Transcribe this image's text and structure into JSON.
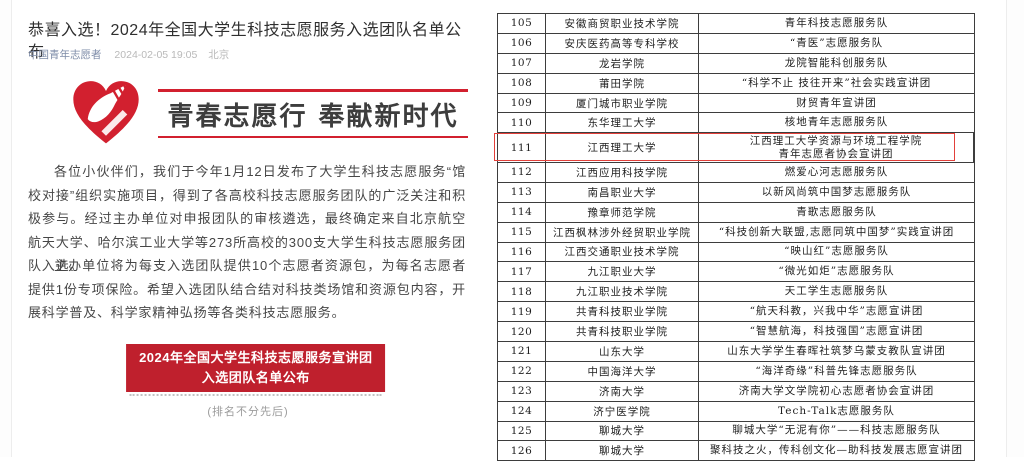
{
  "article": {
    "title": "恭喜入选！2024年全国大学生科技志愿服务入选团队名单公布",
    "account": "中国青年志愿者",
    "date": "2024-02-05 19:05",
    "location": "北京",
    "slogan": "青春志愿行 奉献新时代",
    "paragraphs": {
      "p1": "各位小伙伴们，我们于今年1月12日发布了大学生科技志愿服务“馆校对接”组织实施项目，得到了各高校科技志愿服务团队的广泛关注和积极参与。经过主办单位对申报团队的审核遴选，最终确定来自北京航空航天大学、哈尔滨工业大学等273所高校的300支大学生科技志愿服务团队入选。",
      "p2": "主办单位将为每支入选团队提供10个志愿者资源包，为每名志愿者提供1份专项保险。希望入选团队结合结对科技类场馆和资源包内容，开展科学普及、科学家精神弘扬等各类科技志愿服务。"
    },
    "button_line1": "2024年全国大学生科技志愿服务宣讲团",
    "button_line2": "入选团队名单公布",
    "rank_note": "(排名不分先后)"
  },
  "colors": {
    "brand_red": "#bf202d",
    "logo_red": "#d2202f",
    "highlight_red": "#e2403a",
    "account_blue": "#7e8ca8",
    "table_border": "#3d3d3d"
  },
  "table": {
    "highlighted_no": "111",
    "rows": [
      {
        "no": "105",
        "school": "安徽商贸职业技术学院",
        "team": "青年科技志愿服务队"
      },
      {
        "no": "106",
        "school": "安庆医药高等专科学校",
        "team": "“青医”志愿服务队"
      },
      {
        "no": "107",
        "school": "龙岩学院",
        "team": "龙院智能科创服务队"
      },
      {
        "no": "108",
        "school": "莆田学院",
        "team": "“科学不止 技往开来”社会实践宣讲团"
      },
      {
        "no": "109",
        "school": "厦门城市职业学院",
        "team": "财贸青年宣讲团"
      },
      {
        "no": "110",
        "school": "东华理工大学",
        "team": "核地青年志愿服务队"
      },
      {
        "no": "111",
        "school": "江西理工大学",
        "team": "江西理工大学资源与环境工程学院\n青年志愿者协会宣讲团"
      },
      {
        "no": "112",
        "school": "江西应用科技学院",
        "team": "燃爱心河志愿服务队"
      },
      {
        "no": "113",
        "school": "南昌职业大学",
        "team": "以新风尚筑中国梦志愿服务队"
      },
      {
        "no": "114",
        "school": "豫章师范学院",
        "team": "青歌志愿服务队"
      },
      {
        "no": "115",
        "school": "江西枫林涉外经贸职业学院",
        "team": "“科技创新大联盟,志愿同筑中国梦”实践宣讲团"
      },
      {
        "no": "116",
        "school": "江西交通职业技术学院",
        "team": "“映山红”志愿服务队"
      },
      {
        "no": "117",
        "school": "九江职业大学",
        "team": "“微光如炬”志愿服务队"
      },
      {
        "no": "118",
        "school": "九江职业技术学院",
        "team": "天工学生志愿服务队"
      },
      {
        "no": "119",
        "school": "共青科技职业学院",
        "team": "“航天科教，兴我中华”志愿宣讲团"
      },
      {
        "no": "120",
        "school": "共青科技职业学院",
        "team": "“智慧航海，科技强国”志愿宣讲团"
      },
      {
        "no": "121",
        "school": "山东大学",
        "team": "山东大学学生春晖社筑梦乌蒙支教队宣讲团"
      },
      {
        "no": "122",
        "school": "中国海洋大学",
        "team": "“海洋奇缘”科普先锋志愿服务队"
      },
      {
        "no": "123",
        "school": "济南大学",
        "team": "济南大学文学院初心志愿者协会宣讲团"
      },
      {
        "no": "124",
        "school": "济宁医学院",
        "team": "Tech-Talk志愿服务队"
      },
      {
        "no": "125",
        "school": "聊城大学",
        "team": "聊城大学“无泥有你”——科技志愿服务队"
      },
      {
        "no": "126",
        "school": "聊城大学",
        "team": "聚科技之火，传科创文化—助科技发展志愿宣讲团"
      }
    ]
  }
}
